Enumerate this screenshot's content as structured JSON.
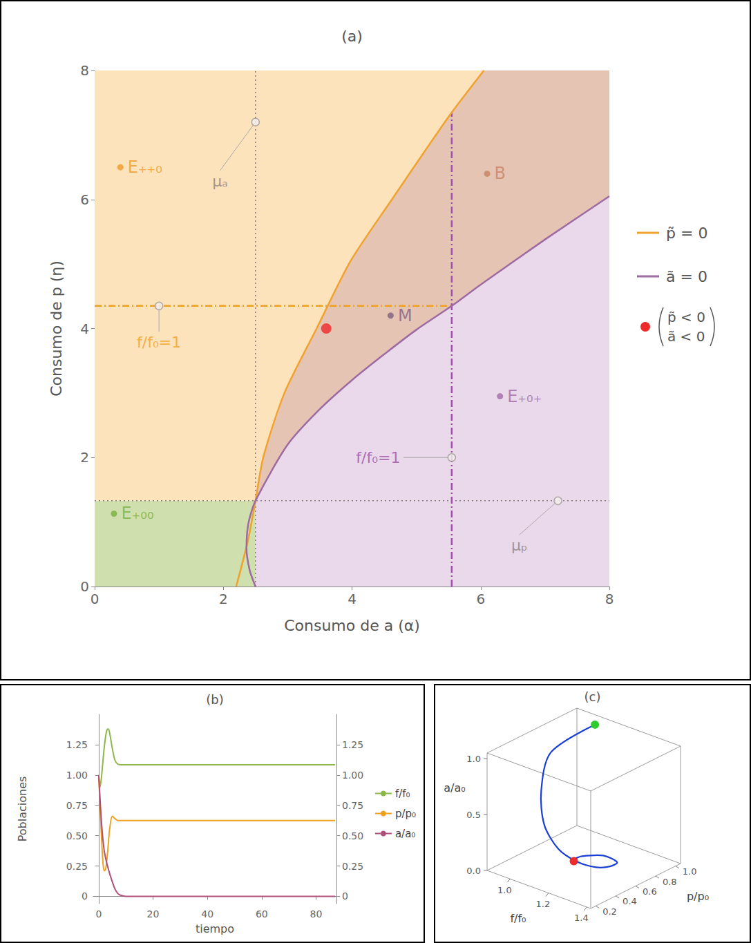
{
  "chart_data": [
    {
      "type": "region_map",
      "title": "(a)",
      "x_label": "Consumo de a (α)",
      "y_label": "Consumo de p (η)",
      "xlim": [
        0,
        8
      ],
      "xticks": [
        0,
        2,
        4,
        6,
        8
      ],
      "ylim": [
        0,
        8
      ],
      "yticks": [
        0,
        2,
        4,
        6,
        8
      ],
      "grid": false,
      "legend": "right",
      "regions": [
        {
          "color": "#cfdfae",
          "x": [
            0,
            0,
            2.5,
            2.5
          ],
          "y": [
            0,
            1.33,
            1.33,
            0
          ]
        },
        {
          "color": "#fde3bc",
          "x": [
            0,
            0,
            6.05,
            5.55,
            5.2,
            4.62,
            3.98,
            3.45,
            2.95,
            2.62,
            2.5
          ],
          "y": [
            1.33,
            8,
            8,
            7.35,
            6.85,
            6.0,
            5.05,
            4.0,
            3.0,
            2.0,
            1.33
          ]
        },
        {
          "color": "#e6c4b3",
          "x": [
            2.5,
            2.62,
            2.95,
            3.45,
            3.98,
            4.62,
            5.2,
            5.55,
            6.05,
            8,
            8,
            7,
            6,
            5.55,
            5,
            4.5,
            4,
            3.5,
            3
          ],
          "y": [
            1.33,
            2.0,
            3.0,
            4.0,
            5.05,
            6.0,
            6.85,
            7.35,
            8,
            8,
            6.05,
            5.38,
            4.68,
            4.35,
            3.98,
            3.6,
            3.2,
            2.75,
            2.2
          ]
        },
        {
          "color": "#e9d9ea",
          "x": [
            2.5,
            3,
            3.5,
            4,
            4.5,
            5,
            5.55,
            6,
            7,
            8,
            8,
            2.5
          ],
          "y": [
            1.33,
            2.2,
            2.75,
            3.2,
            3.6,
            3.98,
            4.35,
            4.68,
            5.38,
            6.05,
            0,
            0
          ]
        }
      ],
      "lines": [
        {
          "x": [
            2.5,
            2.5
          ],
          "y": [
            0,
            8
          ],
          "color": "#8c7f7f",
          "line_style": "dotted"
        },
        {
          "x": [
            0,
            8
          ],
          "y": [
            1.33,
            1.33
          ],
          "color": "#8c7f7f",
          "line_style": "dotted"
        },
        {
          "x": [
            0,
            5.55
          ],
          "y": [
            4.35,
            4.35
          ],
          "color": "#f0a020",
          "line_style": "dashdot"
        },
        {
          "x": [
            5.55,
            5.55
          ],
          "y": [
            0,
            7.35
          ],
          "color": "#a050a8",
          "line_style": "dashdot"
        }
      ],
      "curves": [
        {
          "name": "p̃ = 0",
          "color": "#f0a22e",
          "x": [
            2.2,
            2.38,
            2.5,
            2.62,
            2.95,
            3.45,
            3.98,
            4.62,
            5.2,
            5.55,
            6.05
          ],
          "y": [
            0,
            0.7,
            1.33,
            2.0,
            3.0,
            4.0,
            5.05,
            6.0,
            6.85,
            7.35,
            8
          ]
        },
        {
          "name": "ã = 0",
          "color": "#9e6aa2",
          "x": [
            2.5,
            2.41,
            2.36,
            2.39,
            2.5,
            3,
            3.5,
            4,
            4.5,
            5,
            5.55,
            6,
            7,
            8
          ],
          "y": [
            0,
            0.25,
            0.6,
            0.98,
            1.33,
            2.2,
            2.75,
            3.2,
            3.6,
            3.98,
            4.35,
            4.68,
            5.38,
            6.05
          ]
        }
      ],
      "annotations": [
        {
          "text": "μₐ",
          "at": [
            2.5,
            7.2
          ],
          "label_at": [
            1.95,
            6.45
          ],
          "color": "#8c7f7f"
        },
        {
          "text": "f/f₀=1",
          "at": [
            1.0,
            4.35
          ],
          "label_at": [
            1.0,
            3.95
          ],
          "color": "#f0a020"
        },
        {
          "text": "f/f₀=1",
          "at": [
            5.55,
            2.0
          ],
          "label_at": [
            4.8,
            2.0
          ],
          "color": "#a050a8"
        },
        {
          "text": "μₚ",
          "at": [
            7.2,
            1.33
          ],
          "label_at": [
            6.6,
            0.8
          ],
          "color": "#8c7f7f"
        }
      ],
      "point_labels": [
        {
          "text": "E₊₊₀",
          "at": [
            0.4,
            6.5
          ],
          "color": "#f09a25"
        },
        {
          "text": "E₊₀₀",
          "at": [
            0.3,
            1.13
          ],
          "color": "#78b040"
        },
        {
          "text": "E₊₀₊",
          "at": [
            6.3,
            2.95
          ],
          "color": "#a06aa6"
        },
        {
          "text": "B",
          "at": [
            6.1,
            6.4
          ],
          "color": "#c8825f"
        },
        {
          "text": "M",
          "at": [
            4.6,
            4.2
          ],
          "color": "#80607f"
        }
      ],
      "points": [
        {
          "x": 3.6,
          "y": 4.0,
          "color": "#ee2a2a",
          "label": [
            "p̃ < 0",
            "ã < 0"
          ]
        }
      ]
    },
    {
      "type": "line",
      "title": "(b)",
      "x_label": "tiempo",
      "y_label": "Poblaciones",
      "xlim": [
        -2,
        87.5
      ],
      "xticks": [
        0,
        20,
        40,
        60,
        80
      ],
      "ylim": [
        -0.06,
        1.5
      ],
      "yticks": [
        0,
        0.25,
        {
          "value": 0.5,
          "label": "0.50"
        },
        0.75,
        {
          "value": 1,
          "label": "1.00"
        },
        1.25
      ],
      "y2lim": [
        -0.06,
        1.5
      ],
      "y2ticks": [
        0,
        0.25,
        {
          "value": 0.5,
          "label": "0.50"
        },
        0.75,
        {
          "value": 1,
          "label": "1.00"
        },
        1.25
      ],
      "grid": false,
      "legend": "right",
      "x": [
        0,
        0.5,
        1,
        1.5,
        2,
        2.5,
        3,
        3.5,
        4,
        5,
        6,
        7,
        8,
        10,
        15,
        20,
        30,
        40,
        50,
        60,
        70,
        80,
        87
      ],
      "series": [
        {
          "name": "f/f₀",
          "color": "#8cb84a",
          "values": [
            1.0,
            0.9,
            0.98,
            1.1,
            1.22,
            1.31,
            1.37,
            1.38,
            1.35,
            1.22,
            1.12,
            1.09,
            1.085,
            1.085,
            1.085,
            1.085,
            1.085,
            1.085,
            1.085,
            1.085,
            1.085,
            1.085,
            1.085
          ]
        },
        {
          "name": "p/p₀",
          "color": "#f0a020",
          "values": [
            1.0,
            0.75,
            0.5,
            0.3,
            0.21,
            0.22,
            0.3,
            0.42,
            0.55,
            0.66,
            0.64,
            0.625,
            0.625,
            0.625,
            0.625,
            0.625,
            0.625,
            0.625,
            0.625,
            0.625,
            0.625,
            0.625,
            0.625
          ]
        },
        {
          "name": "a/a₀",
          "color": "#b0507a",
          "values": [
            1.0,
            0.8,
            0.62,
            0.48,
            0.38,
            0.32,
            0.27,
            0.23,
            0.19,
            0.12,
            0.06,
            0.025,
            0.01,
            0,
            0,
            0,
            0,
            0,
            0,
            0,
            0,
            0,
            0
          ]
        }
      ]
    },
    {
      "type": "line3d",
      "title": "(c)",
      "x_label": "f/f₀",
      "y_label": "p/p₀",
      "z_label": "a/a₀",
      "xlim": [
        0.88,
        1.42
      ],
      "xticks": [
        {
          "value": 1,
          "label": "1.0"
        },
        1.2,
        1.4
      ],
      "ylim": [
        0.15,
        1.05
      ],
      "yticks": [
        0.2,
        0.4,
        0.6,
        0.8,
        {
          "value": 1,
          "label": "1.0"
        }
      ],
      "zlim": [
        0,
        1.05
      ],
      "zticks": [
        {
          "value": 0,
          "label": "0.0"
        },
        0.5,
        {
          "value": 1,
          "label": "1.0"
        }
      ],
      "series": [
        {
          "type": "line",
          "color": "#1a3fd6",
          "x": [
            1.0,
            0.9,
            0.98,
            1.1,
            1.22,
            1.31,
            1.37,
            1.38,
            1.35,
            1.22,
            1.12,
            1.09,
            1.085,
            1.085
          ],
          "y": [
            1.0,
            0.75,
            0.5,
            0.3,
            0.21,
            0.22,
            0.3,
            0.42,
            0.55,
            0.66,
            0.64,
            0.625,
            0.625,
            0.625
          ],
          "z": [
            1.0,
            0.8,
            0.62,
            0.48,
            0.38,
            0.32,
            0.27,
            0.23,
            0.19,
            0.12,
            0.06,
            0.025,
            0.01,
            0
          ]
        },
        {
          "type": "scatter",
          "colors": [
            "#2ecc2e",
            "#ee2a2a"
          ],
          "x": [
            1.0,
            1.085
          ],
          "y": [
            1.0,
            0.625
          ],
          "z": [
            1.0,
            0
          ]
        }
      ]
    }
  ]
}
